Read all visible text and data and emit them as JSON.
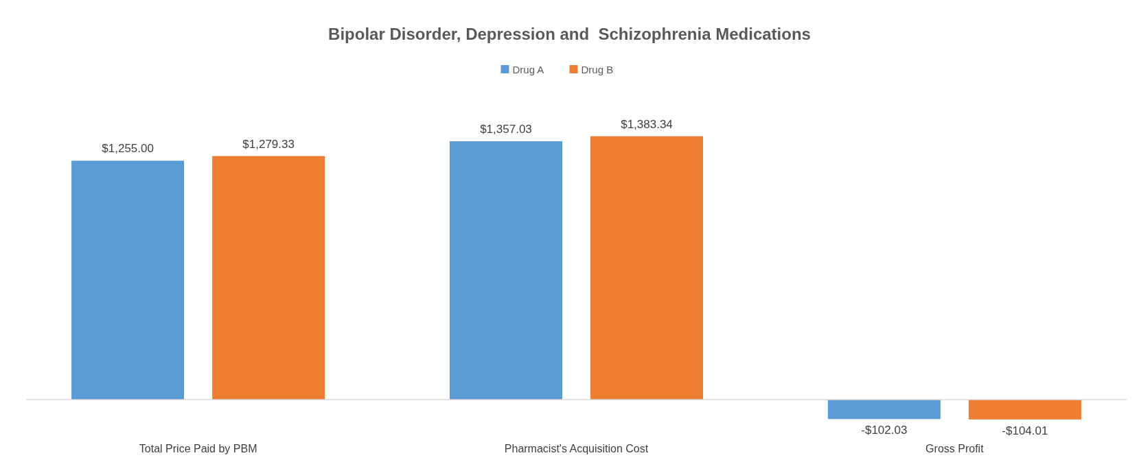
{
  "chart_data": {
    "type": "bar",
    "title": "Bipolar Disorder, Depression and  Schizophrenia Medications",
    "categories": [
      "Total Price Paid by PBM",
      "Pharmacist's Acquisition Cost",
      "Gross Profit"
    ],
    "series": [
      {
        "name": "Drug A",
        "color": "#5b9bd5",
        "values": [
          1255.0,
          1357.03,
          -102.03
        ],
        "value_labels": [
          "$1,255.00",
          "$1,357.03",
          "-$102.03"
        ]
      },
      {
        "name": "Drug B",
        "color": "#ed7d31",
        "values": [
          1279.33,
          1383.34,
          -104.01
        ],
        "value_labels": [
          "$1,279.33",
          "$1,383.34",
          "-$104.01"
        ]
      }
    ],
    "legend": "top"
  }
}
